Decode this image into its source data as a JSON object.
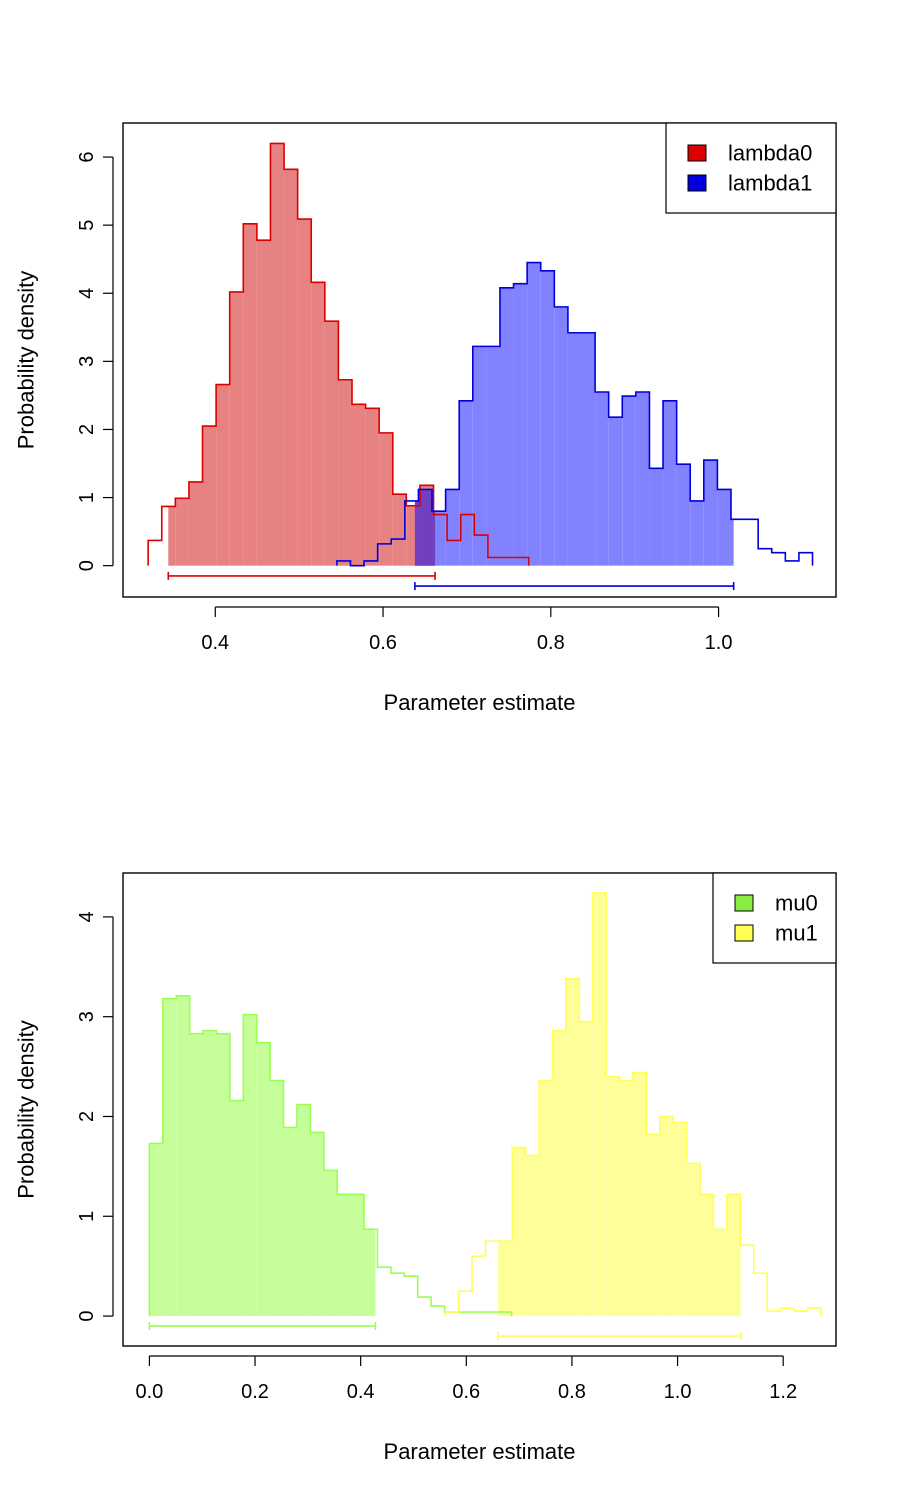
{
  "chart_data": [
    {
      "type": "histogram",
      "xlabel": "Parameter estimate",
      "ylabel": "Probability density",
      "xlim": [
        0.29,
        1.14
      ],
      "ylim": [
        -0.46,
        6.5
      ],
      "xticks": [
        0.4,
        0.6,
        0.8,
        1.0
      ],
      "xtick_labels": [
        "0.4",
        "0.6",
        "0.8",
        "1.0"
      ],
      "yticks": [
        0,
        1,
        2,
        3,
        4,
        5,
        6
      ],
      "ytick_labels": [
        "0",
        "1",
        "2",
        "3",
        "4",
        "5",
        "6"
      ],
      "legend": {
        "position": "top-right",
        "entries": [
          "lambda0",
          "lambda1"
        ]
      },
      "series": [
        {
          "name": "lambda0",
          "line_color": "#dd0000",
          "fill_color": "#e68080",
          "bin_start": 0.32,
          "bin_width": 0.0162,
          "values": [
            0.37,
            0.87,
            0.99,
            1.23,
            2.05,
            2.66,
            4.02,
            5.02,
            4.78,
            6.2,
            5.82,
            5.09,
            4.16,
            3.59,
            2.73,
            2.37,
            2.31,
            1.95,
            1.05,
            0.88,
            1.18,
            0.75,
            0.37,
            0.75,
            0.45,
            0.12,
            0.12,
            0.12
          ],
          "shaded_interval": [
            0.344,
            0.662
          ]
        },
        {
          "name": "lambda1",
          "line_color": "#0000dd",
          "fill_color": "#8080ff",
          "bin_start": 0.545,
          "bin_width": 0.0162,
          "values": [
            0.07,
            0.0,
            0.07,
            0.32,
            0.39,
            0.95,
            1.12,
            0.8,
            1.12,
            2.42,
            3.22,
            3.22,
            4.08,
            4.14,
            4.45,
            4.33,
            3.8,
            3.42,
            3.42,
            2.55,
            2.18,
            2.49,
            2.55,
            1.43,
            2.42,
            1.49,
            0.95,
            1.55,
            1.12,
            0.68,
            0.68,
            0.25,
            0.19,
            0.07,
            0.19
          ],
          "shaded_interval": [
            0.638,
            1.018
          ]
        }
      ],
      "intervals": [
        {
          "series": "lambda0",
          "lower": 0.344,
          "upper": 0.662,
          "y": -0.15,
          "color": "#dd0000"
        },
        {
          "series": "lambda1",
          "lower": 0.638,
          "upper": 1.018,
          "y": -0.3,
          "color": "#0000dd"
        }
      ]
    },
    {
      "type": "histogram",
      "xlabel": "Parameter estimate",
      "ylabel": "Probability density",
      "xlim": [
        -0.05,
        1.3
      ],
      "ylim": [
        -0.3,
        4.44
      ],
      "xticks": [
        0.0,
        0.2,
        0.4,
        0.6,
        0.8,
        1.0,
        1.2
      ],
      "xtick_labels": [
        "0.0",
        "0.2",
        "0.4",
        "0.6",
        "0.8",
        "1.0",
        "1.2"
      ],
      "yticks": [
        0,
        1,
        2,
        3,
        4
      ],
      "ytick_labels": [
        "0",
        "1",
        "2",
        "3",
        "4"
      ],
      "legend": {
        "position": "top-right",
        "entries": [
          "mu0",
          "mu1"
        ]
      },
      "series": [
        {
          "name": "mu0",
          "line_color": "#99ff55",
          "fill_color": "#c6ff99",
          "bin_start": 0.0,
          "bin_width": 0.0254,
          "values": [
            1.73,
            3.18,
            3.21,
            2.83,
            2.86,
            2.83,
            2.16,
            3.02,
            2.74,
            2.36,
            1.89,
            2.12,
            1.84,
            1.46,
            1.22,
            1.22,
            0.87,
            0.49,
            0.43,
            0.4,
            0.19,
            0.1,
            0.04,
            0.04,
            0.04,
            0.04,
            0.04
          ],
          "shaded_interval": [
            0.0,
            0.428
          ]
        },
        {
          "name": "mu1",
          "line_color": "#ffff55",
          "fill_color": "#ffff99",
          "bin_start": 0.56,
          "bin_width": 0.0254,
          "values": [
            0.04,
            0.25,
            0.6,
            0.75,
            0.75,
            1.69,
            1.61,
            2.36,
            2.86,
            3.38,
            2.95,
            4.24,
            2.4,
            2.36,
            2.44,
            1.82,
            2.0,
            1.94,
            1.53,
            1.22,
            0.87,
            1.22,
            0.71,
            0.43,
            0.05,
            0.08,
            0.05,
            0.08
          ],
          "shaded_interval": [
            0.66,
            1.12
          ]
        }
      ],
      "intervals": [
        {
          "series": "mu0",
          "lower": 0.0,
          "upper": 0.428,
          "y": -0.1,
          "color": "#99ff55"
        },
        {
          "series": "mu1",
          "lower": 0.66,
          "upper": 1.12,
          "y": -0.2,
          "color": "#ffff55"
        }
      ]
    }
  ]
}
